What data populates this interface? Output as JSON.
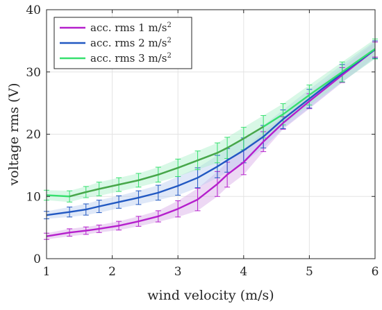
{
  "chart_data": {
    "type": "line",
    "xlabel": "wind velocity (m/s)",
    "ylabel": "voltage rms (V)",
    "xlim": [
      1,
      6
    ],
    "ylim": [
      0,
      40
    ],
    "x_ticks": [
      1,
      2,
      3,
      4,
      5,
      6
    ],
    "y_ticks": [
      0,
      10,
      20,
      30,
      40
    ],
    "grid": true,
    "legend_position": "top-left",
    "x": [
      1.0,
      1.35,
      1.6,
      1.8,
      2.1,
      2.4,
      2.7,
      3.0,
      3.3,
      3.6,
      3.75,
      4.0,
      4.3,
      4.6,
      5.0,
      5.5,
      6.0
    ],
    "series": [
      {
        "name": "acc. rms 1 m/s",
        "superscript": "2",
        "color": "#b51fcc",
        "band_color": "#d6a8e6",
        "values": [
          3.6,
          4.2,
          4.5,
          4.8,
          5.3,
          6.0,
          6.8,
          8.0,
          9.5,
          12.0,
          13.5,
          15.5,
          18.8,
          21.8,
          25.3,
          29.5,
          33.6
        ],
        "errors": [
          0.5,
          0.6,
          0.6,
          0.6,
          0.7,
          0.8,
          0.9,
          1.3,
          1.8,
          2.0,
          2.0,
          2.0,
          1.6,
          1.0,
          1.2,
          1.2,
          1.2
        ]
      },
      {
        "name": "acc. rms 2 m/s",
        "superscript": "2",
        "color": "#2158c2",
        "band_color": "#b9cdf0",
        "values": [
          7.0,
          7.5,
          7.9,
          8.4,
          9.1,
          9.8,
          10.6,
          11.7,
          13.0,
          14.8,
          15.8,
          17.4,
          19.6,
          22.4,
          25.7,
          29.8,
          33.6
        ],
        "errors": [
          0.6,
          0.8,
          0.9,
          1.0,
          1.0,
          1.1,
          1.2,
          1.5,
          1.6,
          1.8,
          1.9,
          2.0,
          1.8,
          1.5,
          1.5,
          1.4,
          1.4
        ]
      },
      {
        "name": "acc. rms 3 m/s",
        "superscript": "2",
        "color": "#36e06e",
        "band_color": "#a8f0c8",
        "values": [
          10.2,
          10.0,
          10.7,
          11.2,
          11.9,
          12.6,
          13.5,
          14.6,
          15.8,
          17.0,
          17.8,
          19.3,
          21.2,
          23.2,
          26.3,
          30.0,
          33.7
        ],
        "errors": [
          0.8,
          0.9,
          0.9,
          1.1,
          1.1,
          1.1,
          1.2,
          1.4,
          1.5,
          1.6,
          1.7,
          1.8,
          1.8,
          1.7,
          1.6,
          1.6,
          1.6
        ]
      }
    ],
    "middle_segment_color": "#4aa54a"
  }
}
